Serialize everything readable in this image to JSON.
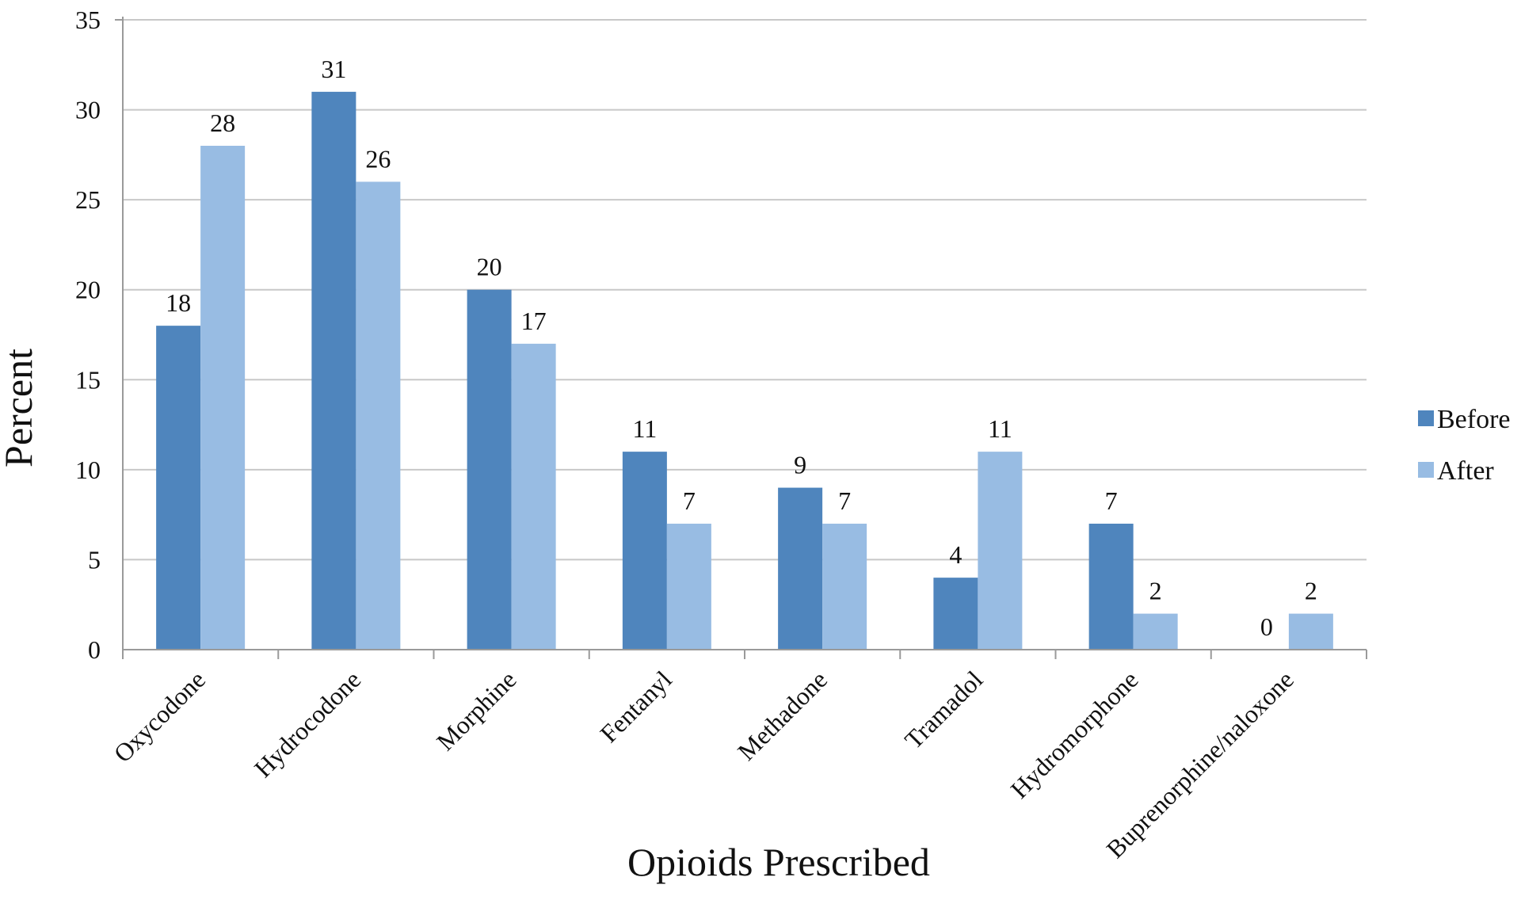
{
  "chart_data": {
    "type": "bar",
    "xlabel": "Opioids Prescribed",
    "ylabel": "Percent",
    "ylim": [
      0,
      35
    ],
    "yticks": [
      0,
      5,
      10,
      15,
      20,
      25,
      30,
      35
    ],
    "grid": true,
    "legend_position": "right",
    "categories": [
      "Oxycodone",
      "Hydrocodone",
      "Morphine",
      "Fentanyl",
      "Methadone",
      "Tramadol",
      "Hydromorphone",
      "Buprenorphine/naloxone"
    ],
    "series": [
      {
        "name": "Before",
        "color": "#4f85bd",
        "values": [
          18,
          31,
          20,
          11,
          9,
          4,
          7,
          0
        ]
      },
      {
        "name": "After",
        "color": "#98bce3",
        "values": [
          28,
          26,
          17,
          7,
          7,
          11,
          2,
          2
        ]
      }
    ]
  }
}
